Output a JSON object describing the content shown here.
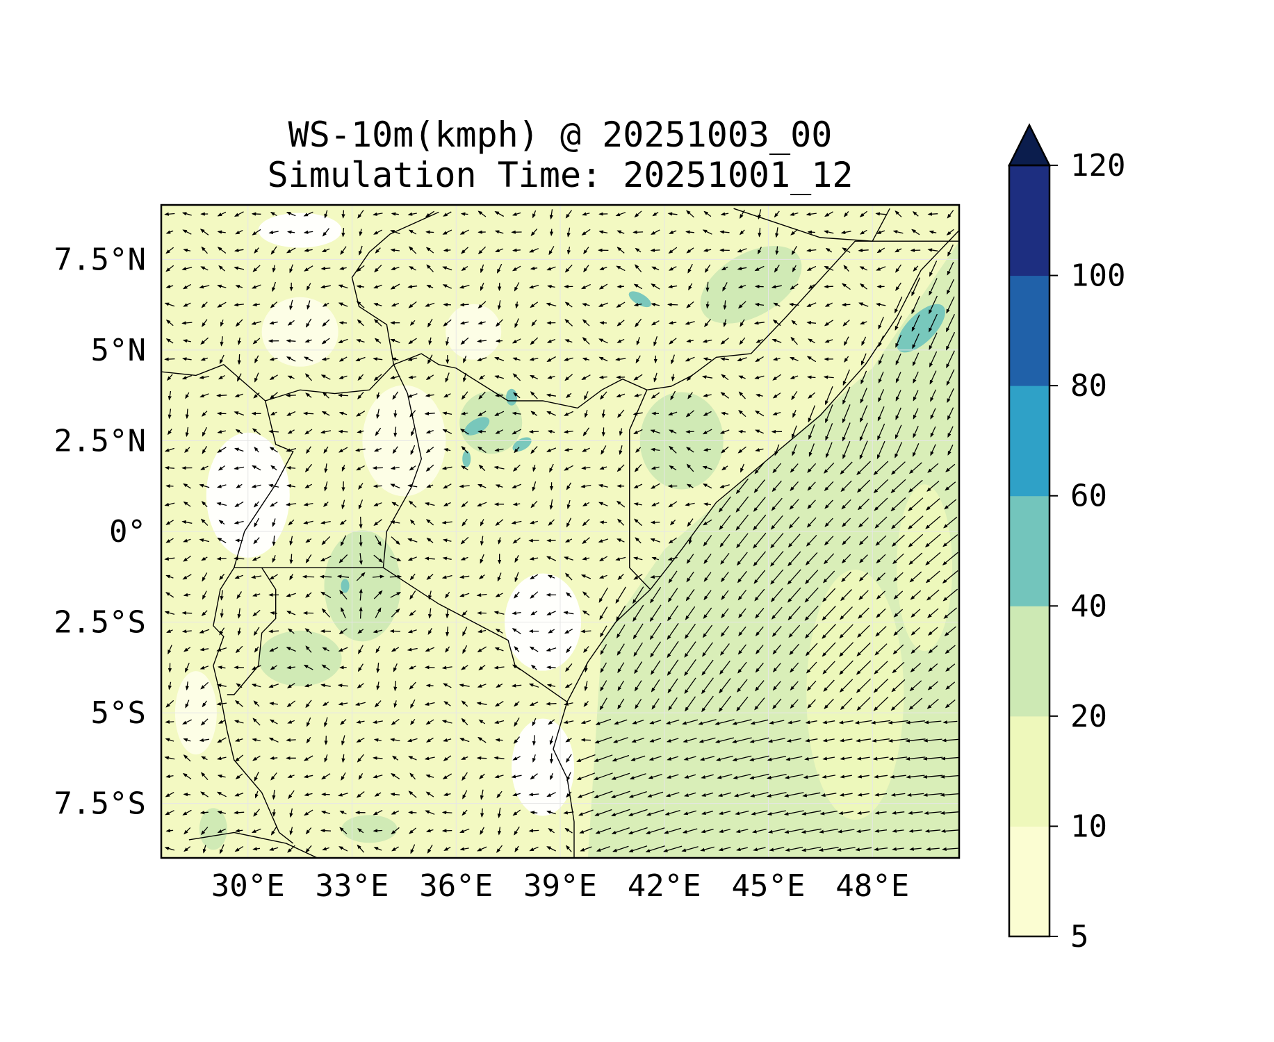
{
  "chart": {
    "title_line1": "WS-10m(kmph) @ 20251003_00",
    "title_line2": "Simulation Time: 20251001_12"
  },
  "map": {
    "lon_range": [
      27.5,
      50.5
    ],
    "lat_range": [
      -9,
      9
    ],
    "x_ticks": [
      "30°E",
      "33°E",
      "36°E",
      "39°E",
      "42°E",
      "45°E",
      "48°E"
    ],
    "x_tick_values": [
      30,
      33,
      36,
      39,
      42,
      45,
      48
    ],
    "y_ticks": [
      "7.5°N",
      "5°N",
      "2.5°N",
      "0°",
      "2.5°S",
      "5°S",
      "7.5°S"
    ],
    "y_tick_values": [
      7.5,
      5,
      2.5,
      0,
      -2.5,
      -5,
      -7.5
    ],
    "vector_field": "wind vectors (quiver)"
  },
  "colorbar": {
    "levels": [
      "5",
      "10",
      "20",
      "40",
      "60",
      "80",
      "100",
      "120"
    ],
    "level_values": [
      5,
      10,
      20,
      40,
      60,
      80,
      100,
      120
    ],
    "colors": [
      "#fbfdd2",
      "#eef8bb",
      "#cde9b4",
      "#73c5bc",
      "#2fa1c7",
      "#2061a9",
      "#1d2e80",
      "#0b1d4d"
    ],
    "extend": "max"
  },
  "chart_data": {
    "type": "heatmap",
    "title": "WS-10m(kmph) @ 20251003_00",
    "subtitle": "Simulation Time: 20251001_12",
    "xlim": [
      27.5,
      50.5
    ],
    "ylim": [
      -9,
      9
    ],
    "x_tick_labels": [
      "30°E",
      "33°E",
      "36°E",
      "39°E",
      "42°E",
      "45°E",
      "48°E"
    ],
    "y_tick_labels": [
      "7.5°N",
      "5°N",
      "2.5°N",
      "0°",
      "2.5°S",
      "5°S",
      "7.5°S"
    ],
    "colorbar_levels": [
      5,
      10,
      20,
      40,
      60,
      80,
      100,
      120
    ],
    "colorbar_extend": "max",
    "grid": true
  }
}
